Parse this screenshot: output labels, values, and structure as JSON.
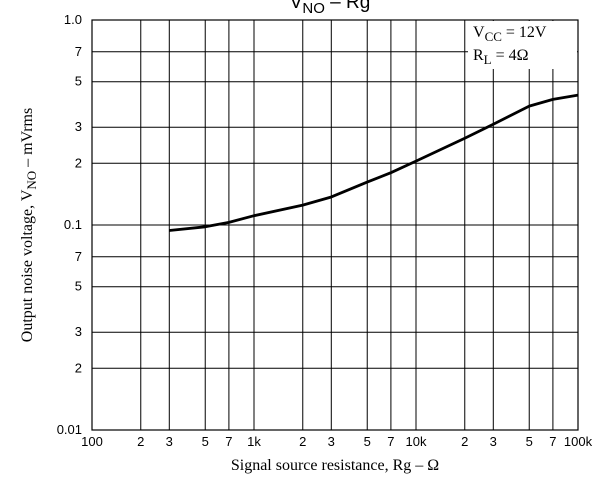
{
  "chart_data": {
    "type": "line",
    "title": {
      "main": "V",
      "sub": "NO",
      "rest": " – Rg"
    },
    "x_label": "Signal source resistance, Rg – Ω",
    "y_label": {
      "main": "Output noise voltage, V",
      "sub": "NO",
      "rest": " – mVrms"
    },
    "annotations": [
      {
        "main": "V",
        "sub": "CC",
        "rest": " = 12V"
      },
      {
        "main": "R",
        "sub": "L",
        "rest": " = 4Ω"
      }
    ],
    "xscale": "log",
    "yscale": "log",
    "grid": true,
    "xlim": [
      100,
      100000
    ],
    "ylim": [
      0.01,
      1.0
    ],
    "xticks": [
      100,
      {
        "value": 200,
        "label": "2"
      },
      {
        "value": 300,
        "label": "3"
      },
      {
        "value": 500,
        "label": "5"
      },
      {
        "value": 700,
        "label": "7"
      },
      {
        "value": 1000,
        "label": "1k"
      },
      {
        "value": 2000,
        "label": "2"
      },
      {
        "value": 3000,
        "label": "3"
      },
      {
        "value": 5000,
        "label": "5"
      },
      {
        "value": 7000,
        "label": "7"
      },
      {
        "value": 10000,
        "label": "10k"
      },
      {
        "value": 20000,
        "label": "2"
      },
      {
        "value": 30000,
        "label": "3"
      },
      {
        "value": 50000,
        "label": "5"
      },
      {
        "value": 70000,
        "label": "7"
      },
      {
        "value": 100000,
        "label": "100k"
      }
    ],
    "yticks": [
      0.01,
      {
        "value": 0.02,
        "label": "2"
      },
      {
        "value": 0.03,
        "label": "3"
      },
      {
        "value": 0.05,
        "label": "5"
      },
      {
        "value": 0.07,
        "label": "7"
      },
      0.1,
      {
        "value": 0.2,
        "label": "2"
      },
      {
        "value": 0.3,
        "label": "3"
      },
      {
        "value": 0.5,
        "label": "5"
      },
      {
        "value": 0.7,
        "label": "7"
      },
      {
        "value": 1.0,
        "label": "1.0"
      }
    ],
    "x": [
      300,
      500,
      700,
      1000,
      2000,
      3000,
      5000,
      7000,
      10000,
      20000,
      30000,
      50000,
      70000,
      100000
    ],
    "values": [
      0.094,
      0.098,
      0.103,
      0.111,
      0.125,
      0.137,
      0.162,
      0.18,
      0.205,
      0.265,
      0.31,
      0.38,
      0.41,
      0.43
    ],
    "color": "#000000"
  }
}
